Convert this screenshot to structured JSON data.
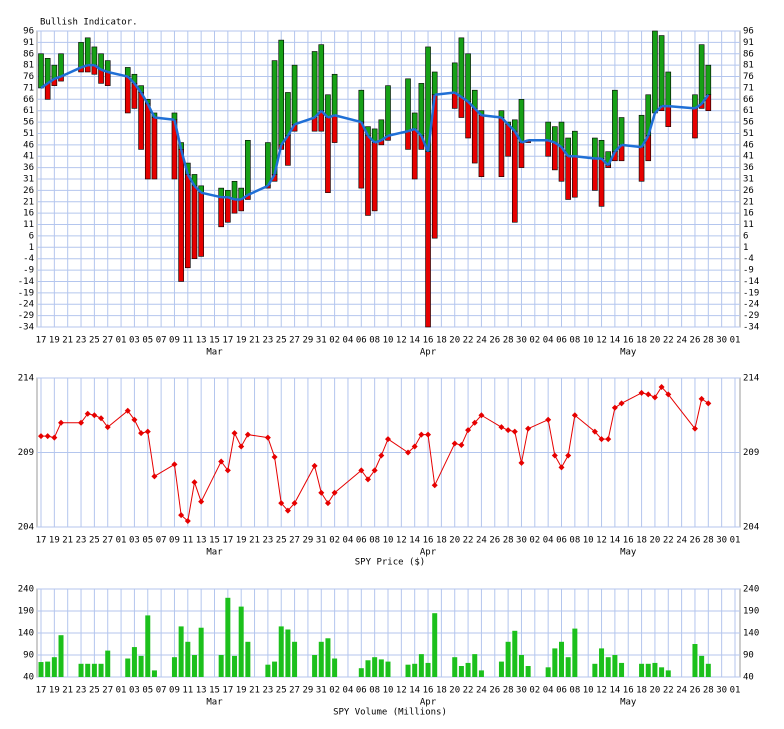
{
  "chart_data": [
    {
      "type": "range_bar",
      "title": "Bullish Indicator.",
      "categories": [
        "17",
        null,
        "19",
        null,
        "21",
        null,
        "23",
        null,
        "25",
        null,
        "27",
        null,
        "01",
        null,
        "03",
        null,
        "05",
        null,
        "07",
        null,
        "09",
        null,
        "11",
        null,
        "13",
        null,
        "15",
        null,
        "17",
        null,
        "19",
        null,
        "21",
        null,
        "23",
        null,
        "25",
        null,
        "27",
        null,
        "29",
        null,
        "31",
        null,
        "02",
        null,
        "04",
        null,
        "06",
        null,
        "08",
        null,
        "10",
        null,
        "12",
        null,
        "14",
        null,
        "16",
        null,
        "18",
        null,
        "20",
        null,
        "22",
        null,
        "24",
        null,
        "26",
        null,
        "28",
        null,
        "30",
        null,
        "02",
        null,
        "04",
        null,
        "06",
        null,
        "08",
        null,
        "10",
        null,
        "12",
        null,
        "14",
        null,
        "16",
        null,
        "18",
        null,
        "20",
        null,
        "22",
        null,
        "24",
        null,
        "26",
        null,
        "28",
        null,
        "30",
        null,
        "01"
      ],
      "months": [
        "Mar",
        "Apr",
        "May"
      ],
      "high": [
        86,
        84,
        81,
        86,
        null,
        null,
        91,
        93,
        89,
        86,
        83,
        null,
        null,
        80,
        77,
        72,
        66,
        60,
        null,
        null,
        60,
        47,
        38,
        33,
        28,
        null,
        null,
        27,
        26,
        30,
        27,
        48,
        null,
        null,
        47,
        83,
        92,
        69,
        81,
        null,
        null,
        87,
        90,
        68,
        77,
        null,
        null,
        null,
        70,
        54,
        53,
        57,
        72,
        null,
        null,
        75,
        60,
        73,
        89,
        78,
        null,
        null,
        82,
        93,
        86,
        70,
        61,
        null,
        null,
        61,
        56,
        57,
        66,
        48,
        null,
        null,
        56,
        54,
        56,
        49,
        52,
        null,
        null,
        49,
        48,
        43,
        70,
        58,
        null,
        null,
        59,
        68,
        96,
        94,
        78,
        null,
        null,
        null,
        68,
        90,
        81,
        null,
        null,
        null,
        null
      ],
      "low": [
        71,
        66,
        72,
        74,
        null,
        null,
        78,
        78,
        77,
        73,
        72,
        null,
        null,
        60,
        62,
        44,
        31,
        31,
        null,
        null,
        31,
        -14,
        -8,
        -4,
        -3,
        null,
        null,
        10,
        12,
        16,
        17,
        22,
        null,
        null,
        27,
        30,
        44,
        37,
        52,
        null,
        null,
        52,
        52,
        25,
        47,
        null,
        null,
        null,
        27,
        15,
        17,
        46,
        48,
        null,
        null,
        44,
        31,
        44,
        -34,
        5,
        null,
        null,
        62,
        58,
        49,
        38,
        32,
        null,
        null,
        32,
        41,
        12,
        36,
        47,
        null,
        null,
        41,
        35,
        30,
        22,
        23,
        null,
        null,
        26,
        19,
        36,
        39,
        39,
        null,
        null,
        30,
        39,
        60,
        61,
        54,
        null,
        null,
        null,
        49,
        62,
        61,
        null,
        null,
        null,
        null
      ],
      "line": [
        71,
        73,
        75,
        76,
        null,
        null,
        80,
        81,
        81,
        79,
        78,
        null,
        null,
        76,
        73,
        69,
        64,
        58,
        null,
        null,
        57,
        44,
        33,
        28,
        25,
        null,
        null,
        23,
        23,
        22,
        22,
        24,
        null,
        null,
        28,
        33,
        46,
        50,
        55,
        null,
        null,
        58,
        61,
        58,
        59,
        null,
        null,
        null,
        56,
        50,
        47,
        48,
        50,
        null,
        null,
        52,
        53,
        50,
        43,
        68,
        null,
        null,
        69,
        67,
        65,
        62,
        59,
        null,
        null,
        58,
        55,
        52,
        47,
        48,
        null,
        null,
        48,
        47,
        45,
        41,
        41,
        null,
        null,
        40,
        40,
        37,
        43,
        46,
        null,
        null,
        45,
        50,
        60,
        63,
        63,
        null,
        null,
        null,
        62,
        64,
        68,
        null,
        null,
        null,
        null
      ],
      "up_color": "#16a016",
      "down_color": "#e60000",
      "line_color": "#1f6fd6",
      "ylim": [
        -34,
        96
      ],
      "yticks": [
        -34,
        -29,
        -24,
        -19,
        -14,
        -9,
        -4,
        1,
        6,
        11,
        16,
        21,
        26,
        31,
        36,
        41,
        46,
        51,
        56,
        61,
        66,
        71,
        76,
        81,
        86,
        91,
        96
      ],
      "grid": true
    },
    {
      "type": "line",
      "x_label": "SPY Price ($)",
      "categories": [
        "17",
        null,
        "19",
        null,
        "21",
        null,
        "23",
        null,
        "25",
        null,
        "27",
        null,
        "01",
        null,
        "03",
        null,
        "05",
        null,
        "07",
        null,
        "09",
        null,
        "11",
        null,
        "13",
        null,
        "15",
        null,
        "17",
        null,
        "19",
        null,
        "21",
        null,
        "23",
        null,
        "25",
        null,
        "27",
        null,
        "29",
        null,
        "31",
        null,
        "02",
        null,
        "04",
        null,
        "06",
        null,
        "08",
        null,
        "10",
        null,
        "12",
        null,
        "14",
        null,
        "16",
        null,
        "18",
        null,
        "20",
        null,
        "22",
        null,
        "24",
        null,
        "26",
        null,
        "28",
        null,
        "30",
        null,
        "02",
        null,
        "04",
        null,
        "06",
        null,
        "08",
        null,
        "10",
        null,
        "12",
        null,
        "14",
        null,
        "16",
        null,
        "18",
        null,
        "20",
        null,
        "22",
        null,
        "24",
        null,
        "26",
        null,
        "28",
        null,
        "30",
        null,
        "01"
      ],
      "months": [
        "Mar",
        "Apr",
        "May"
      ],
      "values": [
        210.1,
        210.1,
        210.0,
        211.0,
        null,
        null,
        211.0,
        211.6,
        211.5,
        211.3,
        210.7,
        null,
        null,
        211.8,
        211.2,
        210.3,
        210.4,
        207.4,
        null,
        null,
        208.2,
        204.8,
        204.4,
        207.0,
        205.7,
        null,
        null,
        208.4,
        207.8,
        210.3,
        209.4,
        210.2,
        null,
        null,
        210.0,
        208.7,
        205.6,
        205.1,
        205.6,
        null,
        null,
        208.1,
        206.3,
        205.6,
        206.3,
        null,
        null,
        null,
        207.8,
        207.2,
        207.8,
        208.8,
        209.9,
        null,
        null,
        209.0,
        209.4,
        210.2,
        210.2,
        206.8,
        null,
        null,
        209.6,
        209.5,
        210.5,
        211.0,
        211.5,
        null,
        null,
        210.7,
        210.5,
        210.4,
        208.3,
        210.6,
        null,
        null,
        211.2,
        208.8,
        208.0,
        208.8,
        211.5,
        null,
        null,
        210.4,
        209.9,
        209.9,
        212.0,
        212.3,
        null,
        null,
        213.0,
        212.9,
        212.7,
        213.4,
        212.9,
        null,
        null,
        null,
        210.6,
        212.6,
        212.3,
        null,
        null,
        null,
        null
      ],
      "color": "#e60000",
      "ylim": [
        204,
        214
      ],
      "yticks": [
        204,
        209,
        214
      ],
      "grid": true
    },
    {
      "type": "bar",
      "x_label": "SPY Volume (Millions)",
      "categories": [
        "17",
        null,
        "19",
        null,
        "21",
        null,
        "23",
        null,
        "25",
        null,
        "27",
        null,
        "01",
        null,
        "03",
        null,
        "05",
        null,
        "07",
        null,
        "09",
        null,
        "11",
        null,
        "13",
        null,
        "15",
        null,
        "17",
        null,
        "19",
        null,
        "21",
        null,
        "23",
        null,
        "25",
        null,
        "27",
        null,
        "29",
        null,
        "31",
        null,
        "02",
        null,
        "04",
        null,
        "06",
        null,
        "08",
        null,
        "10",
        null,
        "12",
        null,
        "14",
        null,
        "16",
        null,
        "18",
        null,
        "20",
        null,
        "22",
        null,
        "24",
        null,
        "26",
        null,
        "28",
        null,
        "30",
        null,
        "02",
        null,
        "04",
        null,
        "06",
        null,
        "08",
        null,
        "10",
        null,
        "12",
        null,
        "14",
        null,
        "16",
        null,
        "18",
        null,
        "20",
        null,
        "22",
        null,
        "24",
        null,
        "26",
        null,
        "28",
        null,
        "30",
        null,
        "01"
      ],
      "months": [
        "Mar",
        "Apr",
        "May"
      ],
      "values": [
        74,
        75,
        85,
        135,
        null,
        null,
        70,
        70,
        70,
        70,
        100,
        null,
        null,
        82,
        108,
        88,
        180,
        55,
        null,
        null,
        85,
        155,
        120,
        90,
        152,
        null,
        null,
        90,
        220,
        88,
        200,
        120,
        null,
        null,
        68,
        75,
        155,
        148,
        120,
        null,
        null,
        90,
        120,
        128,
        82,
        null,
        null,
        null,
        60,
        78,
        85,
        80,
        75,
        null,
        null,
        68,
        70,
        92,
        72,
        185,
        null,
        null,
        85,
        65,
        72,
        92,
        55,
        null,
        null,
        75,
        120,
        145,
        90,
        65,
        null,
        null,
        62,
        105,
        120,
        85,
        150,
        null,
        null,
        70,
        105,
        85,
        90,
        72,
        null,
        null,
        70,
        70,
        72,
        62,
        55,
        null,
        null,
        null,
        115,
        88,
        70,
        null,
        null,
        null,
        null
      ],
      "color": "#1cc01c",
      "ylim": [
        40,
        240
      ],
      "yticks": [
        40,
        90,
        140,
        190,
        240
      ],
      "grid": true
    }
  ]
}
